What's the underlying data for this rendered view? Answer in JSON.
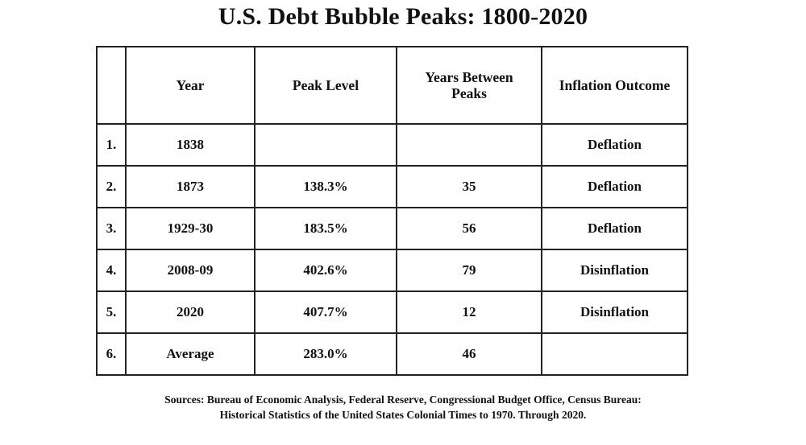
{
  "title": "U.S. Debt Bubble Peaks: 1800-2020",
  "table": {
    "headers": {
      "index": "",
      "year": "Year",
      "peak_level": "Peak Level",
      "years_between_line1": "Years Between",
      "years_between_line2": "Peaks",
      "inflation_outcome": "Inflation Outcome"
    },
    "rows": [
      {
        "index": "1.",
        "year": "1838",
        "peak_level": "",
        "years_between": "",
        "inflation_outcome": "Deflation"
      },
      {
        "index": "2.",
        "year": "1873",
        "peak_level": "138.3%",
        "years_between": "35",
        "inflation_outcome": "Deflation"
      },
      {
        "index": "3.",
        "year": "1929-30",
        "peak_level": "183.5%",
        "years_between": "56",
        "inflation_outcome": "Deflation"
      },
      {
        "index": "4.",
        "year": "2008-09",
        "peak_level": "402.6%",
        "years_between": "79",
        "inflation_outcome": "Disinflation"
      },
      {
        "index": "5.",
        "year": "2020",
        "peak_level": "407.7%",
        "years_between": "12",
        "inflation_outcome": "Disinflation"
      },
      {
        "index": "6.",
        "year": "Average",
        "peak_level": "283.0%",
        "years_between": "46",
        "inflation_outcome": ""
      }
    ]
  },
  "sources": {
    "line1": "Sources: Bureau of Economic Analysis, Federal Reserve, Congressional Budget Office, Census Bureau:",
    "line2": "Historical Statistics of the United States Colonial Times to 1970.  Through 2020."
  }
}
